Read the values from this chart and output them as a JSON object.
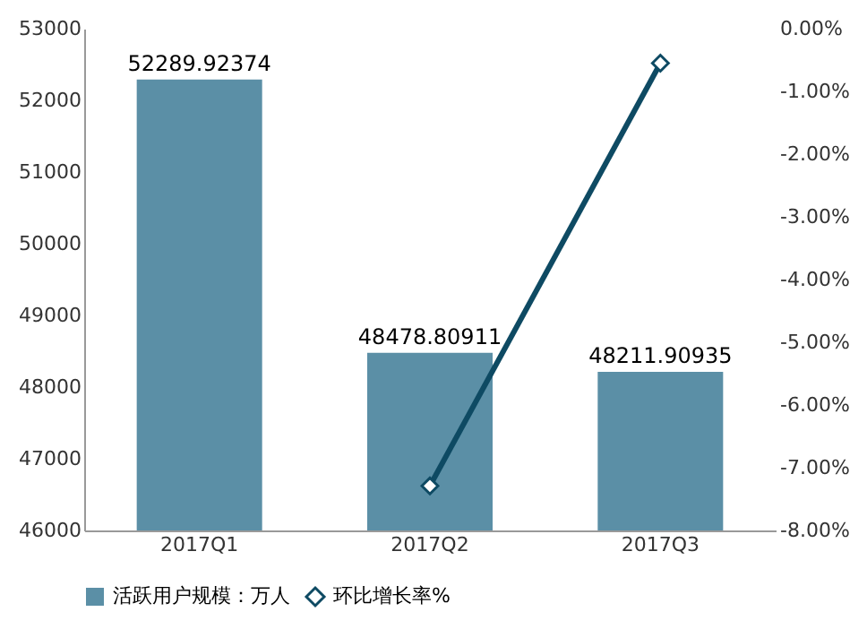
{
  "chart_data": {
    "type": "bar",
    "categories": [
      "2017Q1",
      "2017Q2",
      "2017Q3"
    ],
    "series": [
      {
        "name": "活跃用户规模：万人",
        "color": "#5b8fa6",
        "values": [
          52289.92374,
          48478.80911,
          48211.90935
        ],
        "value_labels": [
          "52289.92374",
          "48478.80911",
          "48211.90935"
        ]
      },
      {
        "name": "环比增长率%",
        "type": "line",
        "axis": "y2",
        "color": "#0e4a63",
        "marker": "diamond",
        "values": [
          null,
          -7.29,
          -0.55
        ]
      }
    ],
    "ylim": [
      46000,
      53000
    ],
    "yticks": [
      46000,
      47000,
      48000,
      49000,
      50000,
      51000,
      52000,
      53000
    ],
    "y2lim": [
      -8,
      0
    ],
    "y2ticks": [
      {
        "value": 0,
        "label": "0.00%"
      },
      {
        "value": -1,
        "label": "-1.00%"
      },
      {
        "value": -2,
        "label": "-2.00%"
      },
      {
        "value": -3,
        "label": "-3.00%"
      },
      {
        "value": -4,
        "label": "-4.00%"
      },
      {
        "value": -5,
        "label": "-5.00%"
      },
      {
        "value": -6,
        "label": "-6.00%"
      },
      {
        "value": -7,
        "label": "-7.00%"
      },
      {
        "value": -8,
        "label": "-8.00%"
      }
    ],
    "grid": false,
    "legend": "bottom"
  }
}
